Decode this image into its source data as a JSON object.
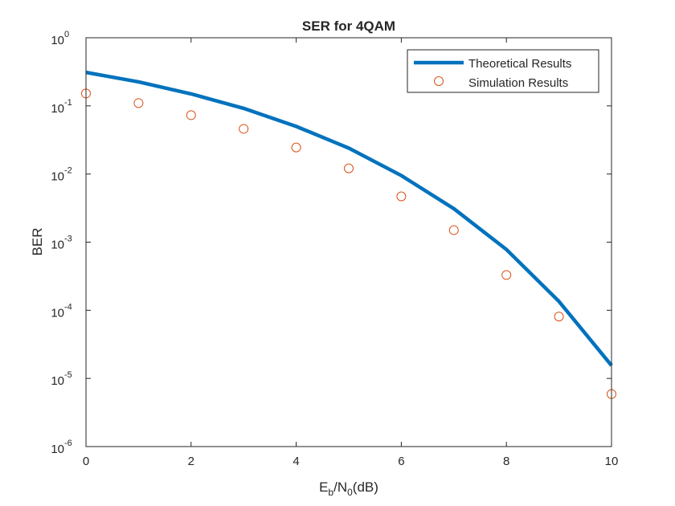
{
  "chart_data": {
    "type": "line",
    "title": "SER for 4QAM",
    "xlabel": {
      "base": "E",
      "sub1": "b",
      "mid": "/N",
      "sub2": "0",
      "tail": "(dB)"
    },
    "ylabel": "BER",
    "xlim": [
      0,
      10
    ],
    "ylim": [
      1e-06,
      1
    ],
    "yscale": "log",
    "grid": false,
    "legend_position": "top-right",
    "x_tick_labels": [
      "0",
      "2",
      "4",
      "6",
      "8",
      "10"
    ],
    "y_tick_labels": [
      {
        "base": "10",
        "exp": "-6"
      },
      {
        "base": "10",
        "exp": "-5"
      },
      {
        "base": "10",
        "exp": "-4"
      },
      {
        "base": "10",
        "exp": "-3"
      },
      {
        "base": "10",
        "exp": "-2"
      },
      {
        "base": "10",
        "exp": "-1"
      },
      {
        "base": "10",
        "exp": "0"
      }
    ],
    "series": [
      {
        "name": "Theoretical Results",
        "style": "line",
        "color": "#0072BD",
        "x": [
          0,
          1,
          2,
          3,
          4,
          5,
          6,
          7,
          8,
          9,
          10
        ],
        "y": [
          0.31,
          0.225,
          0.15,
          0.092,
          0.05,
          0.024,
          0.0095,
          0.0031,
          0.00078,
          0.000135,
          1.55e-05
        ]
      },
      {
        "name": "Simulation Results",
        "style": "marker",
        "marker": "circle",
        "color": "#D95319",
        "x": [
          0,
          1,
          2,
          3,
          4,
          5,
          6,
          7,
          8,
          9,
          10
        ],
        "y": [
          0.152,
          0.11,
          0.073,
          0.046,
          0.0245,
          0.0121,
          0.0047,
          0.0015,
          0.00033,
          8.1e-05,
          5.9e-06
        ]
      }
    ]
  }
}
